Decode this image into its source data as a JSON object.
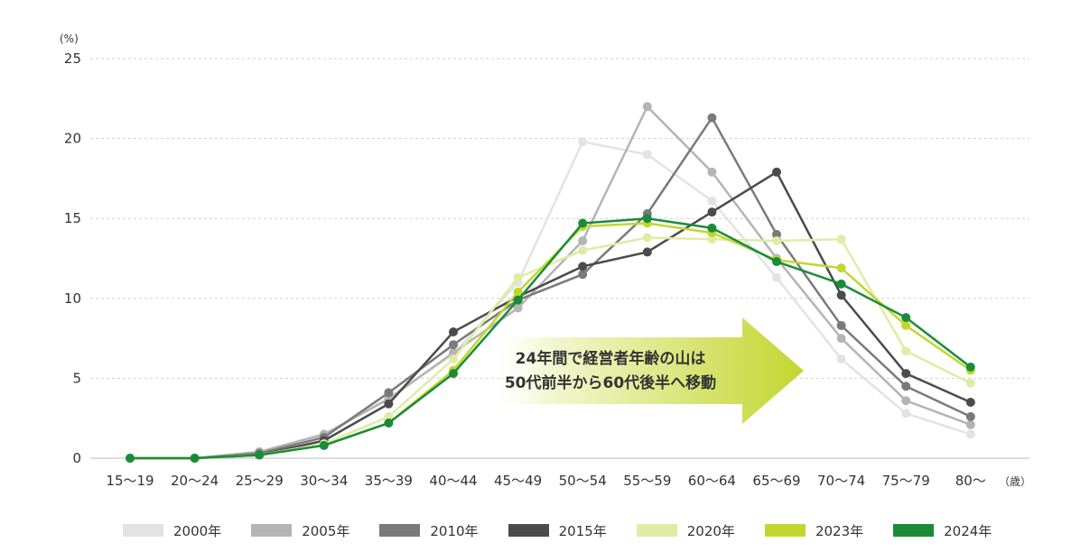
{
  "chart_data": {
    "type": "line",
    "y_unit": "(%)",
    "x_unit": "（歳）",
    "ylim": [
      0,
      25
    ],
    "yticks": [
      "0",
      "5",
      "10",
      "15",
      "20",
      "25"
    ],
    "grid": "horizontal dashed",
    "legend_position": "bottom",
    "categories": [
      "15〜19",
      "20〜24",
      "25〜29",
      "30〜34",
      "35〜39",
      "40〜44",
      "45〜49",
      "50〜54",
      "55〜59",
      "60〜64",
      "65〜69",
      "70〜74",
      "75〜79",
      "80〜"
    ],
    "series": [
      {
        "name": "2000年",
        "color": "#e3e3e3",
        "values": [
          0,
          0,
          0.3,
          1.4,
          3.8,
          6.5,
          11.0,
          19.8,
          19.0,
          16.1,
          11.3,
          6.2,
          2.8,
          1.5
        ]
      },
      {
        "name": "2005年",
        "color": "#b4b4b4",
        "values": [
          0,
          0,
          0.4,
          1.5,
          3.7,
          6.6,
          9.4,
          13.6,
          22.0,
          17.9,
          12.5,
          7.5,
          3.6,
          2.1
        ]
      },
      {
        "name": "2010年",
        "color": "#7a7a7a",
        "values": [
          0,
          0,
          0.3,
          1.3,
          4.1,
          7.1,
          9.9,
          11.5,
          15.3,
          21.3,
          14.0,
          8.3,
          4.5,
          2.6
        ]
      },
      {
        "name": "2015年",
        "color": "#4b4b4b",
        "values": [
          0,
          0,
          0.2,
          1.1,
          3.4,
          7.9,
          10.1,
          12.0,
          12.9,
          15.4,
          17.9,
          10.2,
          5.3,
          3.5
        ]
      },
      {
        "name": "2020年",
        "color": "#e0eca4",
        "values": [
          0,
          0,
          0.2,
          0.9,
          2.6,
          6.2,
          11.3,
          13.0,
          13.8,
          13.7,
          13.6,
          13.7,
          6.7,
          4.7
        ]
      },
      {
        "name": "2023年",
        "color": "#c3d630",
        "values": [
          0,
          0,
          0.2,
          0.8,
          2.2,
          5.5,
          10.4,
          14.5,
          14.7,
          14.1,
          12.4,
          11.9,
          8.3,
          5.5
        ]
      },
      {
        "name": "2024年",
        "color": "#1a8c39",
        "values": [
          0,
          0,
          0.2,
          0.8,
          2.2,
          5.3,
          9.9,
          14.7,
          15.0,
          14.4,
          12.3,
          10.9,
          8.8,
          5.7
        ]
      }
    ],
    "annotation": {
      "line1": "24年間で経営者年齢の山は",
      "line2": "50代前半から60代後半へ移動"
    }
  }
}
